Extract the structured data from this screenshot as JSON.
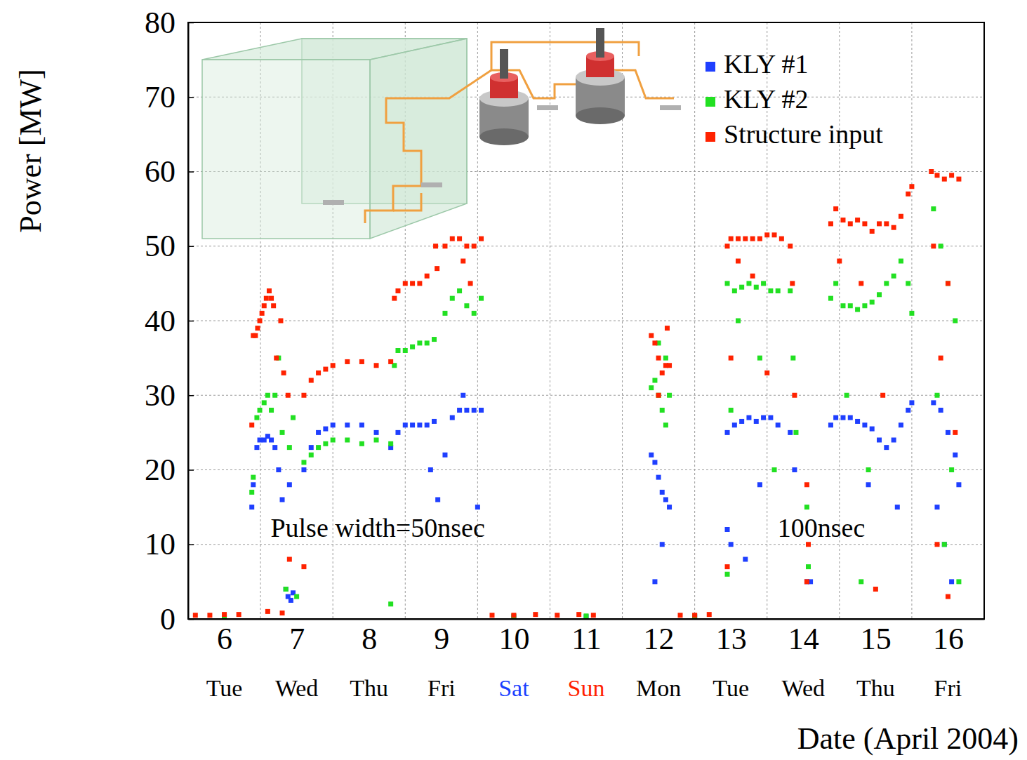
{
  "chart_data": {
    "type": "scatter",
    "x_label": "Date (April 2004)",
    "y_label": "Power [MW]",
    "xlim": [
      6,
      17
    ],
    "ylim": [
      0,
      80
    ],
    "xticks": [
      {
        "value": 6.5,
        "label": "6"
      },
      {
        "value": 7.5,
        "label": "7"
      },
      {
        "value": 8.5,
        "label": "8"
      },
      {
        "value": 9.5,
        "label": "9"
      },
      {
        "value": 10.5,
        "label": "10"
      },
      {
        "value": 11.5,
        "label": "11"
      },
      {
        "value": 12.5,
        "label": "12"
      },
      {
        "value": 13.5,
        "label": "13"
      },
      {
        "value": 14.5,
        "label": "14"
      },
      {
        "value": 15.5,
        "label": "15"
      },
      {
        "value": 16.5,
        "label": "16"
      }
    ],
    "weekdays": [
      {
        "label": "Tue",
        "color": "#000000"
      },
      {
        "label": "Wed",
        "color": "#000000"
      },
      {
        "label": "Thu",
        "color": "#000000"
      },
      {
        "label": "Fri",
        "color": "#000000"
      },
      {
        "label": "Sat",
        "color": "#1a3fff"
      },
      {
        "label": "Sun",
        "color": "#ff2200"
      },
      {
        "label": "Mon",
        "color": "#000000"
      },
      {
        "label": "Tue",
        "color": "#000000"
      },
      {
        "label": "Wed",
        "color": "#000000"
      },
      {
        "label": "Thu",
        "color": "#000000"
      },
      {
        "label": "Fri",
        "color": "#000000"
      }
    ],
    "xgrid": [
      7,
      8,
      9,
      10,
      11,
      12,
      13,
      14,
      15,
      16
    ],
    "yticks": [
      0,
      10,
      20,
      30,
      40,
      50,
      60,
      70,
      80
    ],
    "grid": true,
    "legend": "top-right",
    "marker": "square",
    "annotations": [
      {
        "text": "Pulse width=50nsec",
        "x": 8.62,
        "y": 11
      },
      {
        "text": "100nsec",
        "x": 14.75,
        "y": 11
      }
    ],
    "series": [
      {
        "name": "KLY #1",
        "color": "#1f3fff",
        "x": [
          6.5,
          10.5,
          11.5,
          13.0,
          6.88,
          6.9,
          6.95,
          6.99,
          7.05,
          7.1,
          7.15,
          7.2,
          7.25,
          7.3,
          7.4,
          7.35,
          7.38,
          7.42,
          7.45,
          7.6,
          7.7,
          7.8,
          7.9,
          8.0,
          8.2,
          8.4,
          8.6,
          8.8,
          8.9,
          9.0,
          9.1,
          9.2,
          9.3,
          9.4,
          9.35,
          9.45,
          9.55,
          9.65,
          9.75,
          9.85,
          9.95,
          10.05,
          9.8,
          10.0,
          12.4,
          12.45,
          12.5,
          12.55,
          12.6,
          12.65,
          12.45,
          12.55,
          13.45,
          13.55,
          13.65,
          13.75,
          13.85,
          13.95,
          14.05,
          14.15,
          13.5,
          13.7,
          13.45,
          13.9,
          14.32,
          14.38,
          14.55,
          14.6,
          14.88,
          14.95,
          15.05,
          15.15,
          15.25,
          15.35,
          15.45,
          15.55,
          15.65,
          15.75,
          15.85,
          15.95,
          16.0,
          15.4,
          15.8,
          16.3,
          16.4,
          16.5,
          16.6,
          16.35,
          16.45,
          16.55,
          16.65
        ],
        "values": [
          0.3,
          0.3,
          0.3,
          0.3,
          15,
          18,
          23,
          24,
          24,
          24.5,
          24,
          23,
          20,
          16,
          18,
          4,
          3,
          2.5,
          3.5,
          20,
          23,
          25,
          25.5,
          26,
          26,
          26,
          25,
          23,
          25,
          26,
          26,
          26,
          26,
          26.5,
          20,
          16,
          22,
          27,
          28,
          28,
          28,
          28,
          30,
          15,
          22,
          21,
          19,
          17,
          16,
          15,
          5,
          10,
          25,
          26,
          26.5,
          27,
          26.5,
          27,
          27,
          26,
          10,
          8,
          12,
          18,
          25,
          20,
          5,
          5,
          26,
          27,
          27,
          27,
          26.5,
          26,
          25.5,
          24,
          23,
          24,
          26,
          28,
          29,
          18,
          15,
          29,
          28,
          25,
          22,
          15,
          10,
          5,
          18
        ]
      },
      {
        "name": "KLY #2",
        "color": "#22e022",
        "x": [
          6.5,
          10.5,
          11.5,
          13.0,
          6.88,
          6.9,
          6.95,
          6.99,
          7.05,
          7.1,
          7.15,
          7.2,
          7.25,
          7.3,
          7.4,
          7.45,
          7.6,
          7.7,
          7.8,
          7.9,
          8.0,
          8.2,
          8.4,
          8.6,
          8.8,
          8.85,
          8.9,
          9.0,
          9.1,
          9.2,
          9.3,
          9.4,
          9.55,
          9.65,
          9.75,
          9.85,
          9.95,
          10.05,
          7.35,
          7.5,
          8.8,
          12.4,
          12.45,
          12.5,
          12.55,
          12.6,
          12.65,
          12.5,
          12.6,
          13.45,
          13.55,
          13.65,
          13.75,
          13.85,
          13.95,
          14.05,
          14.15,
          13.6,
          13.9,
          14.1,
          13.5,
          13.45,
          14.32,
          14.36,
          14.4,
          14.55,
          14.57,
          14.88,
          14.95,
          15.05,
          15.15,
          15.25,
          15.35,
          15.45,
          15.55,
          15.65,
          15.75,
          15.85,
          15.95,
          16.0,
          15.1,
          15.4,
          15.3,
          16.3,
          16.4,
          16.5,
          16.6,
          16.35,
          16.55,
          16.45,
          16.65
        ],
        "values": [
          0.4,
          0.4,
          0.4,
          0.4,
          17,
          19,
          27,
          28,
          29,
          30,
          28,
          30,
          35,
          25,
          23,
          27,
          21,
          22,
          23,
          23.5,
          24,
          24,
          23.5,
          24,
          23.5,
          34,
          36,
          36,
          36.5,
          37,
          37,
          37.5,
          41,
          43,
          44,
          42,
          41,
          43,
          4,
          3,
          2,
          31,
          32,
          30,
          28,
          26,
          30,
          37,
          35,
          45,
          44,
          44.5,
          45,
          44.5,
          45,
          44,
          44,
          40,
          35,
          20,
          28,
          6,
          44,
          35,
          25,
          15,
          7,
          43,
          45,
          42,
          42,
          41.5,
          42,
          42.5,
          43.5,
          45,
          46,
          48,
          45,
          41,
          30,
          20,
          5,
          55,
          50,
          45,
          40,
          30,
          20,
          10,
          5
        ]
      },
      {
        "name": "Structure input",
        "color": "#ff2200",
        "x": [
          6.1,
          6.3,
          6.5,
          6.7,
          6.88,
          6.9,
          6.93,
          6.96,
          6.99,
          7.02,
          7.05,
          7.08,
          7.12,
          7.15,
          7.18,
          7.22,
          7.28,
          7.32,
          7.38,
          7.1,
          7.3,
          7.4,
          7.6,
          7.6,
          7.7,
          7.8,
          7.9,
          8.0,
          8.2,
          8.4,
          8.6,
          8.8,
          8.85,
          8.9,
          9.0,
          9.1,
          9.2,
          9.3,
          9.42,
          9.44,
          9.55,
          9.65,
          9.75,
          9.85,
          9.95,
          10.05,
          9.8,
          9.9,
          10.2,
          10.5,
          10.8,
          11.1,
          11.4,
          11.6,
          12.4,
          12.45,
          12.5,
          12.55,
          12.6,
          12.65,
          12.62,
          12.5,
          12.8,
          13.0,
          13.2,
          13.45,
          13.5,
          13.6,
          13.7,
          13.8,
          13.9,
          14.0,
          14.1,
          14.2,
          13.6,
          13.8,
          13.5,
          14.0,
          13.45,
          14.32,
          14.35,
          14.38,
          14.55,
          14.57,
          14.55,
          14.88,
          14.95,
          15.05,
          15.15,
          15.25,
          15.35,
          15.45,
          15.55,
          15.65,
          15.75,
          15.85,
          15.95,
          16.0,
          15.0,
          15.3,
          15.6,
          15.5,
          16.27,
          16.35,
          16.45,
          16.55,
          16.65,
          16.3,
          16.5,
          16.4,
          16.6,
          16.35,
          16.5
        ],
        "values": [
          0.5,
          0.5,
          0.6,
          0.6,
          26,
          38,
          38,
          39,
          40,
          41,
          42,
          43,
          44,
          43,
          42,
          35,
          40,
          33,
          30,
          1,
          0.8,
          8,
          7,
          30,
          32,
          33,
          33.5,
          34,
          34.5,
          34.5,
          34,
          34.5,
          43,
          44,
          45,
          45,
          45,
          46,
          50,
          47,
          50,
          51,
          51,
          50,
          50,
          51,
          48,
          45,
          0.5,
          0.5,
          0.6,
          0.5,
          0.6,
          0.5,
          38,
          37,
          35,
          33,
          34,
          34,
          39,
          30,
          0.5,
          0.5,
          0.6,
          50,
          51,
          51,
          51,
          51,
          51,
          51.5,
          51.5,
          51,
          48,
          46,
          35,
          33,
          7,
          50,
          45,
          30,
          18,
          10,
          5,
          53,
          55,
          53.5,
          53,
          53.5,
          53,
          52,
          53,
          53,
          52.5,
          54,
          57,
          58,
          48,
          45,
          30,
          4,
          60,
          59.5,
          59,
          59.5,
          59,
          50,
          45,
          35,
          25,
          10,
          3
        ]
      }
    ]
  }
}
